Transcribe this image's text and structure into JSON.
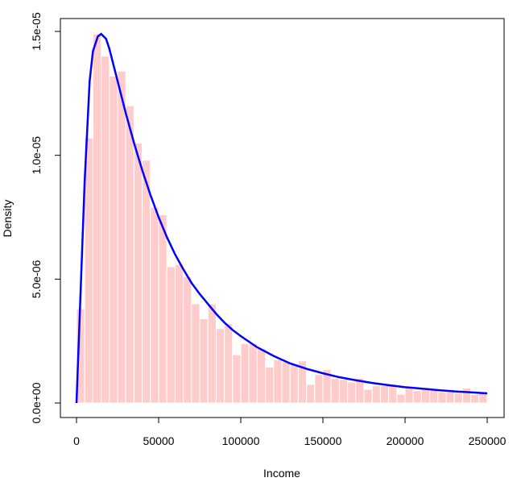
{
  "chart_data": {
    "type": "bar",
    "title": "",
    "xlabel": "Income",
    "ylabel": "Density",
    "xlim": [
      0,
      250000
    ],
    "ylim": [
      0,
      1.5e-05
    ],
    "grid": false,
    "x_ticks": [
      0,
      50000,
      100000,
      150000,
      200000,
      250000
    ],
    "x_tick_labels": [
      "0",
      "50000",
      "100000",
      "150000",
      "200000",
      "250000"
    ],
    "y_ticks": [
      0,
      5e-06,
      1e-05,
      1.5e-05
    ],
    "y_tick_labels": [
      "0.0e+00",
      "5.0e-06",
      "1.0e-05",
      "1.5e-05"
    ],
    "histogram": {
      "bin_width": 5000,
      "bin_start": 0,
      "color": "#ffcccc",
      "border_color": "#ffffff",
      "values": [
        3.8e-06,
        1.07e-05,
        1.49e-05,
        1.4e-05,
        1.32e-05,
        1.34e-05,
        1.2e-05,
        1.05e-05,
        9.8e-06,
        7.9e-06,
        7.6e-06,
        5.5e-06,
        5.6e-06,
        5.1e-06,
        4e-06,
        3.4e-06,
        4e-06,
        3e-06,
        3.2e-06,
        1.95e-06,
        2.4e-06,
        2.4e-06,
        2.2e-06,
        1.45e-06,
        1.75e-06,
        1.65e-06,
        1.55e-06,
        1.7e-06,
        7.5e-07,
        1.15e-06,
        1.35e-06,
        1e-06,
        9.5e-07,
        8.5e-07,
        1e-06,
        5.5e-07,
        7e-07,
        7e-07,
        7.5e-07,
        3.5e-07,
        6.5e-07,
        5e-07,
        5.5e-07,
        5e-07,
        4.5e-07,
        5.5e-07,
        4e-07,
        6e-07,
        3.5e-07,
        4e-07
      ]
    },
    "density_curve": {
      "color": "#0000ff",
      "x": [
        0,
        5000,
        8000,
        10000,
        13000,
        15000,
        18000,
        20000,
        25000,
        30000,
        35000,
        40000,
        45000,
        50000,
        55000,
        60000,
        65000,
        70000,
        75000,
        80000,
        85000,
        90000,
        95000,
        100000,
        110000,
        120000,
        130000,
        140000,
        150000,
        160000,
        170000,
        180000,
        190000,
        200000,
        210000,
        220000,
        230000,
        240000,
        250000
      ],
      "y": [
        0,
        9e-06,
        1.3e-05,
        1.42e-05,
        1.48e-05,
        1.49e-05,
        1.47e-05,
        1.43e-05,
        1.3e-05,
        1.17e-05,
        1.05e-05,
        9.4e-06,
        8.4e-06,
        7.5e-06,
        6.7e-06,
        6e-06,
        5.4e-06,
        4.85e-06,
        4.4e-06,
        4e-06,
        3.6e-06,
        3.25e-06,
        2.95e-06,
        2.7e-06,
        2.25e-06,
        1.9e-06,
        1.6e-06,
        1.38e-06,
        1.2e-06,
        1.04e-06,
        9.2e-07,
        8.1e-07,
        7.2e-07,
        6.4e-07,
        5.8e-07,
        5.2e-07,
        4.7e-07,
        4.3e-07,
        3.9e-07
      ]
    }
  }
}
